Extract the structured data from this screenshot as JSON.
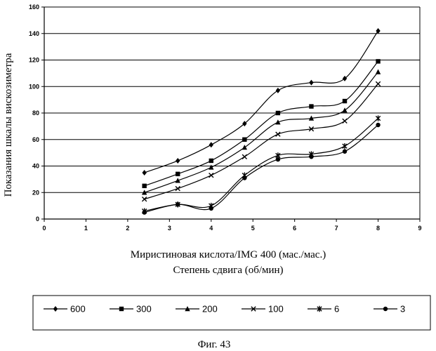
{
  "chart_data": {
    "type": "line",
    "title": "",
    "xlabel": "Миристиновая кислота/IMG 400 (мас./мас.)",
    "xlabel2": "Степень сдвига (об/мин)",
    "ylabel": "Показания шкалы вискозиметра",
    "xlim": [
      0,
      9
    ],
    "ylim": [
      0,
      160
    ],
    "xticks": [
      0,
      1,
      2,
      3,
      4,
      5,
      6,
      7,
      8,
      9
    ],
    "yticks": [
      0,
      20,
      40,
      60,
      80,
      100,
      120,
      140,
      160
    ],
    "grid": "horizontal",
    "legend_position": "bottom",
    "x": [
      2.4,
      3.2,
      4.0,
      4.8,
      5.6,
      6.4,
      7.2,
      8.0
    ],
    "series": [
      {
        "name": "600",
        "marker": "diamond",
        "values": [
          35,
          44,
          56,
          72,
          97,
          103,
          106,
          142
        ]
      },
      {
        "name": "300",
        "marker": "square",
        "values": [
          25,
          34,
          44,
          60,
          80,
          85,
          89,
          119
        ]
      },
      {
        "name": "200",
        "marker": "triangle",
        "values": [
          20,
          29,
          39,
          54,
          73,
          76,
          82,
          111
        ]
      },
      {
        "name": "100",
        "marker": "x",
        "values": [
          15,
          23,
          33,
          47,
          64,
          68,
          74,
          102
        ]
      },
      {
        "name": "6",
        "marker": "asterisk",
        "values": [
          6,
          11,
          10,
          33,
          48,
          49,
          55,
          76
        ]
      },
      {
        "name": "3",
        "marker": "circle",
        "values": [
          5,
          11,
          8,
          31,
          45,
          47,
          51,
          71
        ]
      }
    ]
  },
  "caption": "Фиг. 43",
  "colors": {
    "line": "#000000",
    "grid": "#000000",
    "background": "#ffffff"
  }
}
